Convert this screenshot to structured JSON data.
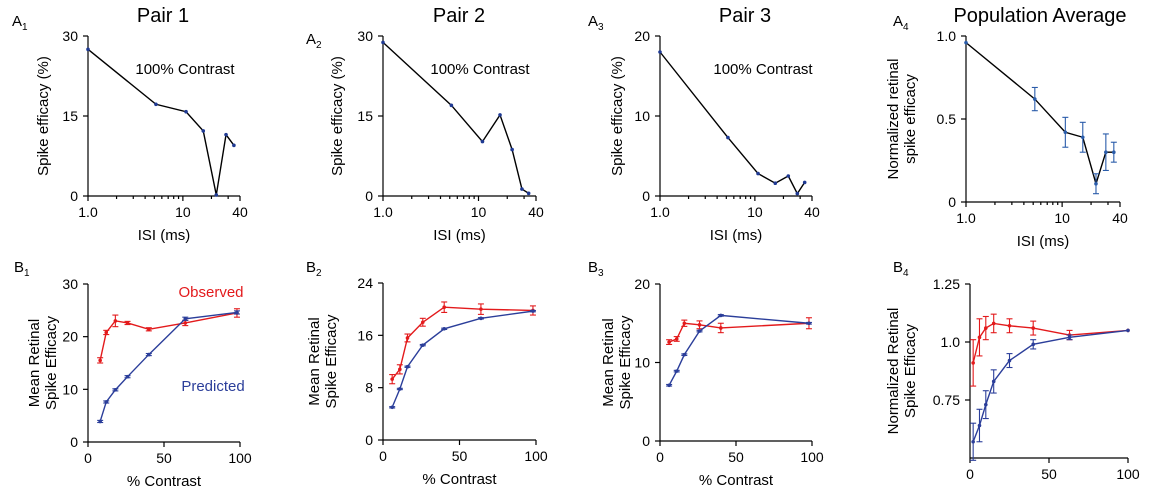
{
  "figure": {
    "panels": [
      {
        "id": "A1",
        "panel_label": {
          "main": "A",
          "sub": "1"
        },
        "title": "Pair 1",
        "annotation": "100% Contrast",
        "chart_data": {
          "type": "line",
          "xscale": "log",
          "xlim": [
            1,
            40
          ],
          "ylim": [
            0,
            30
          ],
          "xticks": [
            {
              "v": 1,
              "l": "1.0"
            },
            {
              "v": 10,
              "l": "10"
            },
            {
              "v": 40,
              "l": "40"
            }
          ],
          "yticks": [
            {
              "v": 0,
              "l": "0"
            },
            {
              "v": 15,
              "l": "15"
            },
            {
              "v": 30,
              "l": "30"
            }
          ],
          "xlabel": "ISI (ms)",
          "ylabel": [
            "Spike efficacy (%)"
          ],
          "series": [
            {
              "color": "#000000",
              "marker": "#1f3a93",
              "x": [
                1.0,
                5.2,
                10.8,
                16.4,
                22.5,
                28.5,
                34.5
              ],
              "y": [
                27.5,
                17.2,
                15.8,
                12.2,
                0.2,
                11.5,
                9.5
              ]
            }
          ]
        }
      },
      {
        "id": "A2",
        "panel_label": {
          "main": "A",
          "sub": "2"
        },
        "title": "Pair 2",
        "annotation": "100% Contrast",
        "chart_data": {
          "type": "line",
          "xscale": "log",
          "xlim": [
            1,
            40
          ],
          "ylim": [
            0,
            30
          ],
          "xticks": [
            {
              "v": 1,
              "l": "1.0"
            },
            {
              "v": 10,
              "l": "10"
            },
            {
              "v": 40,
              "l": "40"
            }
          ],
          "yticks": [
            {
              "v": 0,
              "l": "0"
            },
            {
              "v": 15,
              "l": "15"
            },
            {
              "v": 30,
              "l": "30"
            }
          ],
          "xlabel": "ISI (ms)",
          "ylabel": [
            "Spike efficacy (%)"
          ],
          "series": [
            {
              "color": "#000000",
              "marker": "#1f3a93",
              "x": [
                1.0,
                5.2,
                11.0,
                16.8,
                22.5,
                28.5,
                33.5
              ],
              "y": [
                28.8,
                17.0,
                10.2,
                15.2,
                8.7,
                1.3,
                0.5
              ]
            }
          ]
        }
      },
      {
        "id": "A3",
        "panel_label": {
          "main": "A",
          "sub": "3"
        },
        "title": "Pair 3",
        "annotation": "100% Contrast",
        "chart_data": {
          "type": "line",
          "xscale": "log",
          "xlim": [
            1,
            40
          ],
          "ylim": [
            0,
            20
          ],
          "xticks": [
            {
              "v": 1,
              "l": "1.0"
            },
            {
              "v": 10,
              "l": "10"
            },
            {
              "v": 40,
              "l": "40"
            }
          ],
          "yticks": [
            {
              "v": 0,
              "l": "0"
            },
            {
              "v": 10,
              "l": "10"
            },
            {
              "v": 20,
              "l": "20"
            }
          ],
          "xlabel": "ISI (ms)",
          "ylabel": [
            "Spike efficacy (%)"
          ],
          "series": [
            {
              "color": "#000000",
              "marker": "#1f3a93",
              "x": [
                1.0,
                5.2,
                10.8,
                16.4,
                22.5,
                28.0,
                33.5
              ],
              "y": [
                18.0,
                7.3,
                2.8,
                1.6,
                2.5,
                0.3,
                1.7
              ]
            }
          ]
        }
      },
      {
        "id": "A4",
        "panel_label": {
          "main": "A",
          "sub": "4"
        },
        "title": "Population Average",
        "annotation": "",
        "chart_data": {
          "type": "line",
          "xscale": "log",
          "xlim": [
            1,
            40
          ],
          "ylim": [
            0,
            1
          ],
          "xticks": [
            {
              "v": 1,
              "l": "1.0"
            },
            {
              "v": 10,
              "l": "10"
            },
            {
              "v": 40,
              "l": "40"
            }
          ],
          "yticks": [
            {
              "v": 0,
              "l": "0"
            },
            {
              "v": 0.5,
              "l": "0.5"
            },
            {
              "v": 1,
              "l": "1.0"
            }
          ],
          "xlabel": "ISI (ms)",
          "ylabel": [
            "Normalized retinal",
            "spike efficacy"
          ],
          "series": [
            {
              "color": "#000000",
              "marker": "#2a5caa",
              "errcolor": "#2a5caa",
              "x": [
                1.0,
                5.2,
                10.8,
                16.4,
                22.5,
                28.5,
                34.5
              ],
              "y": [
                0.96,
                0.62,
                0.42,
                0.39,
                0.11,
                0.3,
                0.3
              ],
              "err": [
                0.0,
                0.07,
                0.09,
                0.09,
                0.06,
                0.11,
                0.06
              ]
            }
          ]
        }
      },
      {
        "id": "B1",
        "panel_label": {
          "main": "B",
          "sub": "1"
        },
        "title": "",
        "annotations": [
          {
            "text": "Observed",
            "color": "#e31a1c"
          },
          {
            "text": "Predicted",
            "color": "#2b3e9a"
          }
        ],
        "chart_data": {
          "type": "line",
          "xscale": "linear",
          "xlim": [
            0,
            100
          ],
          "ylim": [
            0,
            30
          ],
          "xticks": [
            {
              "v": 0,
              "l": "0"
            },
            {
              "v": 50,
              "l": "50"
            },
            {
              "v": 100,
              "l": "100"
            }
          ],
          "yticks": [
            {
              "v": 0,
              "l": "0"
            },
            {
              "v": 10,
              "l": "10"
            },
            {
              "v": 20,
              "l": "20"
            },
            {
              "v": 30,
              "l": "30"
            }
          ],
          "xlabel": "% Contrast",
          "ylabel": [
            "Mean Retinal",
            "Spike Efficacy"
          ],
          "series": [
            {
              "name": "Observed",
              "color": "#e31a1c",
              "x": [
                8,
                12,
                18,
                26,
                40,
                64,
                98
              ],
              "y": [
                15.5,
                20.8,
                23.0,
                22.6,
                21.4,
                22.6,
                24.5
              ],
              "err": [
                0.5,
                0.4,
                1.1,
                0.3,
                0.3,
                0.5,
                0.8
              ]
            },
            {
              "name": "Predicted",
              "color": "#2b3e9a",
              "x": [
                8,
                12,
                18,
                26,
                40,
                64,
                98
              ],
              "y": [
                3.9,
                7.6,
                9.9,
                12.4,
                16.6,
                23.4,
                24.6
              ],
              "err": [
                0.2,
                0.2,
                0.2,
                0.2,
                0.2,
                0.3,
                0.3
              ]
            }
          ]
        }
      },
      {
        "id": "B2",
        "panel_label": {
          "main": "B",
          "sub": "2"
        },
        "title": "",
        "chart_data": {
          "type": "line",
          "xscale": "linear",
          "xlim": [
            0,
            100
          ],
          "ylim": [
            0,
            24
          ],
          "xticks": [
            {
              "v": 0,
              "l": "0"
            },
            {
              "v": 50,
              "l": "50"
            },
            {
              "v": 100,
              "l": "100"
            }
          ],
          "yticks": [
            {
              "v": 0,
              "l": "0"
            },
            {
              "v": 8,
              "l": "8"
            },
            {
              "v": 16,
              "l": "16"
            },
            {
              "v": 24,
              "l": "24"
            }
          ],
          "xlabel": "% Contrast",
          "ylabel": [
            "Mean Retinal",
            "Spike Efficacy"
          ],
          "series": [
            {
              "color": "#e31a1c",
              "x": [
                6,
                11,
                16,
                26,
                40,
                64,
                98
              ],
              "y": [
                9.3,
                10.8,
                15.6,
                18.0,
                20.3,
                20.0,
                19.8
              ],
              "err": [
                0.7,
                0.7,
                0.6,
                0.6,
                0.8,
                0.8,
                0.7
              ]
            },
            {
              "color": "#2b3e9a",
              "x": [
                6,
                11,
                16,
                26,
                40,
                64,
                98
              ],
              "y": [
                5.0,
                7.8,
                11.2,
                14.5,
                17.0,
                18.6,
                19.7
              ],
              "err": [
                0.1,
                0.1,
                0.1,
                0.1,
                0.1,
                0.1,
                0.1
              ]
            }
          ]
        }
      },
      {
        "id": "B3",
        "panel_label": {
          "main": "B",
          "sub": "3"
        },
        "title": "",
        "chart_data": {
          "type": "line",
          "xscale": "linear",
          "xlim": [
            0,
            100
          ],
          "ylim": [
            0,
            20
          ],
          "xticks": [
            {
              "v": 0,
              "l": "0"
            },
            {
              "v": 50,
              "l": "50"
            },
            {
              "v": 100,
              "l": "100"
            }
          ],
          "yticks": [
            {
              "v": 0,
              "l": "0"
            },
            {
              "v": 10,
              "l": "10"
            },
            {
              "v": 20,
              "l": "20"
            }
          ],
          "xlabel": "% Contrast",
          "ylabel": [
            "Mean Retinal",
            "Spike Efficacy"
          ],
          "series": [
            {
              "color": "#e31a1c",
              "x": [
                6,
                11,
                16,
                26,
                40,
                98
              ],
              "y": [
                12.6,
                13.0,
                15.0,
                14.8,
                14.4,
                15.0
              ],
              "err": [
                0.3,
                0.3,
                0.4,
                0.5,
                0.6,
                0.7
              ]
            },
            {
              "color": "#2b3e9a",
              "x": [
                6,
                11,
                16,
                26,
                40,
                98
              ],
              "y": [
                7.1,
                8.9,
                11.0,
                14.0,
                16.0,
                15.0
              ],
              "err": [
                0.1,
                0.1,
                0.1,
                0.1,
                0.1,
                0.1
              ]
            }
          ]
        }
      },
      {
        "id": "B4",
        "panel_label": {
          "main": "B",
          "sub": "4"
        },
        "title": "",
        "chart_data": {
          "type": "line",
          "xscale": "linear",
          "xlim": [
            0,
            100
          ],
          "ylim": [
            0.5,
            1.25
          ],
          "xticks": [
            {
              "v": 0,
              "l": "0"
            },
            {
              "v": 50,
              "l": "50"
            },
            {
              "v": 100,
              "l": "100"
            }
          ],
          "yticks": [
            {
              "v": 0.75,
              "l": "0.75"
            },
            {
              "v": 1.0,
              "l": "1.0"
            },
            {
              "v": 1.25,
              "l": "1.25"
            }
          ],
          "xlabel": "% Contrast",
          "ylabel": [
            "Normalized Retinal",
            "Spike Efficacy"
          ],
          "series": [
            {
              "color": "#e31a1c",
              "x": [
                2,
                6,
                10,
                15,
                25,
                40,
                63,
                100
              ],
              "y": [
                0.91,
                1.02,
                1.06,
                1.08,
                1.07,
                1.06,
                1.03,
                1.05
              ],
              "err": [
                0.1,
                0.08,
                0.05,
                0.04,
                0.03,
                0.03,
                0.02,
                0.0
              ]
            },
            {
              "color": "#2b3e9a",
              "x": [
                2,
                6,
                10,
                15,
                25,
                40,
                63,
                100
              ],
              "y": [
                0.57,
                0.64,
                0.73,
                0.83,
                0.92,
                0.99,
                1.02,
                1.05
              ],
              "err": [
                0.08,
                0.07,
                0.06,
                0.05,
                0.03,
                0.02,
                0.01,
                0.0
              ]
            }
          ]
        }
      }
    ]
  }
}
